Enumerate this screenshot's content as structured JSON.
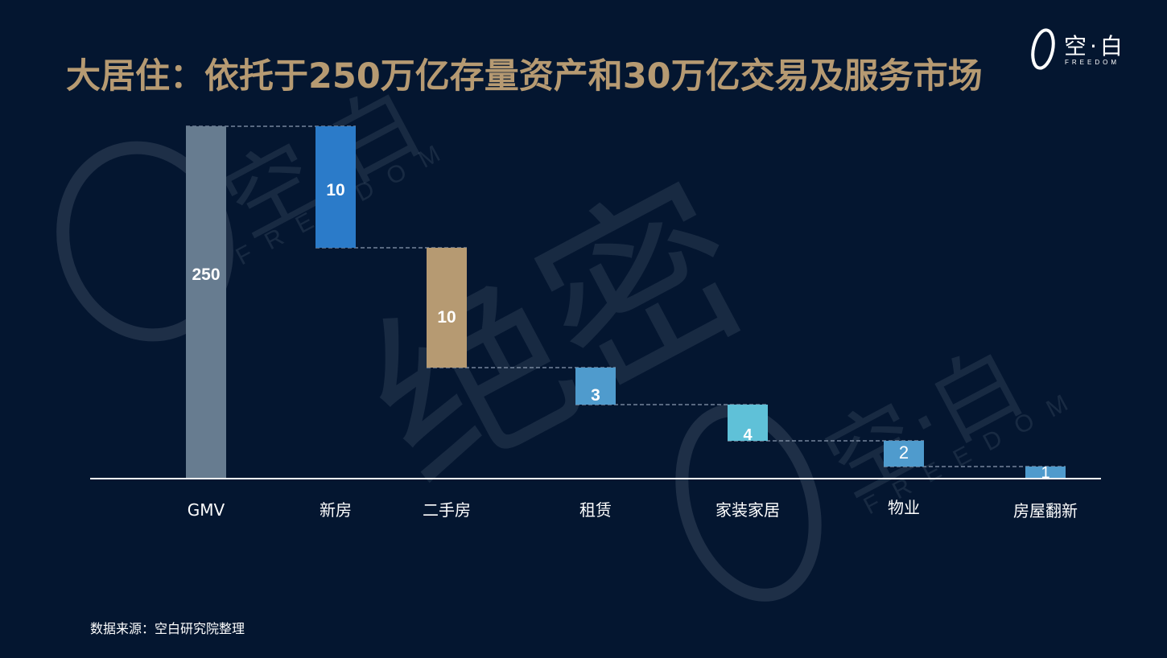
{
  "header": {
    "title": "大居住：依托于250万亿存量资产和30万亿交易及服务市场",
    "logo_text": "空·白",
    "logo_sub": "FREEDOM"
  },
  "watermark": {
    "text": "绝密",
    "brand": "空·白",
    "brand_sub": "FREEDOM"
  },
  "footer": {
    "source": "数据来源：空白研究院整理"
  },
  "chart_data": {
    "type": "waterfall",
    "categories": [
      "GMV",
      "新房",
      "二手房",
      "租赁",
      "家装家居",
      "物业",
      "房屋翻新"
    ],
    "values": [
      250,
      10,
      10,
      3,
      4,
      2,
      1
    ],
    "data_labels": [
      "250",
      "10",
      "10",
      "3",
      "4",
      "2",
      "1"
    ],
    "colors": [
      "#677c90",
      "#2b7bc9",
      "#b69a72",
      "#4f9bcd",
      "#5fc1d8",
      "#4f9bcd",
      "#4f9bcd"
    ],
    "title": "",
    "xlabel": "",
    "ylabel": "",
    "grid": false,
    "legend": "none"
  }
}
